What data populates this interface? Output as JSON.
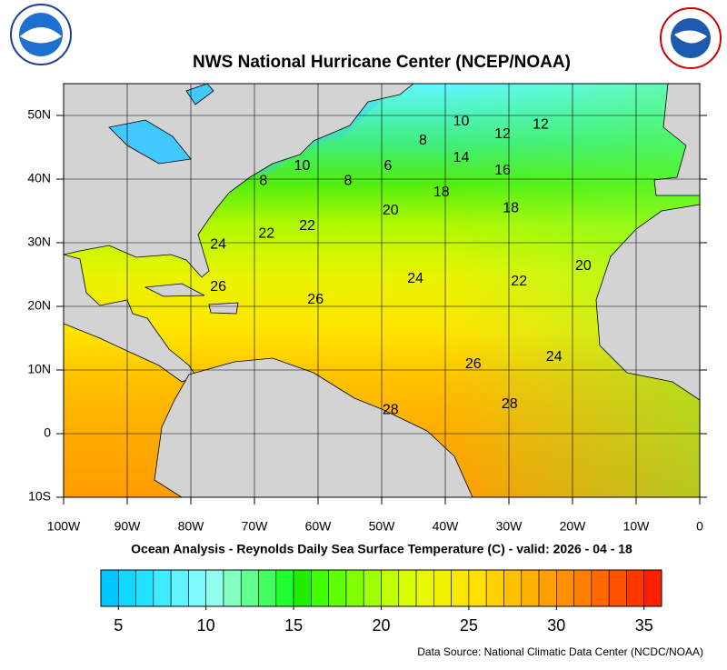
{
  "title": "NWS National Hurricane Center (NCEP/NOAA)",
  "subtitle": "Ocean Analysis - Reynolds Daily Sea Surface Temperature (C) - valid: 2026 - 04 - 18",
  "source": "Data Source: National Climatic Data Center (NCDC/NOAA)",
  "map": {
    "xlim": [
      -100,
      0
    ],
    "ylim": [
      -10,
      55
    ],
    "xticks": [
      {
        "value": -100,
        "label": "100W"
      },
      {
        "value": -90,
        "label": "90W"
      },
      {
        "value": -80,
        "label": "80W"
      },
      {
        "value": -70,
        "label": "70W"
      },
      {
        "value": -60,
        "label": "60W"
      },
      {
        "value": -50,
        "label": "50W"
      },
      {
        "value": -40,
        "label": "40W"
      },
      {
        "value": -30,
        "label": "30W"
      },
      {
        "value": -20,
        "label": "20W"
      },
      {
        "value": -10,
        "label": "10W"
      },
      0
    ],
    "yticks": [
      {
        "value": -10,
        "label": "10S"
      },
      0,
      {
        "value": 10,
        "label": "10N"
      },
      {
        "value": 20,
        "label": "20N"
      },
      {
        "value": 30,
        "label": "30N"
      },
      {
        "value": 40,
        "label": "40N"
      },
      {
        "value": 50,
        "label": "50N"
      }
    ],
    "grid": true,
    "contour_labels": [
      {
        "value": 10,
        "lon": -37.5,
        "lat": 49
      },
      {
        "value": 12,
        "lon": -25,
        "lat": 48.5
      },
      {
        "value": 8,
        "lon": -43.5,
        "lat": 46
      },
      {
        "value": 12,
        "lon": -31,
        "lat": 47
      },
      {
        "value": 14,
        "lon": -37.5,
        "lat": 43.3
      },
      {
        "value": 10,
        "lon": -62.5,
        "lat": 42
      },
      {
        "value": 6,
        "lon": -49,
        "lat": 42
      },
      {
        "value": 16,
        "lon": -31,
        "lat": 41.3
      },
      {
        "value": 8,
        "lon": -68.6,
        "lat": 39.7
      },
      {
        "value": 8,
        "lon": -55.3,
        "lat": 39.7
      },
      {
        "value": 18,
        "lon": -40.6,
        "lat": 37.9
      },
      {
        "value": 20,
        "lon": -48.6,
        "lat": 35
      },
      {
        "value": 18,
        "lon": -29.7,
        "lat": 35.4
      },
      {
        "value": 22,
        "lon": -68.1,
        "lat": 31.4
      },
      {
        "value": 22,
        "lon": -61.7,
        "lat": 32.6
      },
      {
        "value": 24,
        "lon": -75.7,
        "lat": 29.7
      },
      {
        "value": 20,
        "lon": -18.3,
        "lat": 26.3
      },
      {
        "value": 24,
        "lon": -44.7,
        "lat": 24.3
      },
      {
        "value": 22,
        "lon": -28.4,
        "lat": 23.9
      },
      {
        "value": 26,
        "lon": -75.7,
        "lat": 23
      },
      {
        "value": 26,
        "lon": -60.4,
        "lat": 21
      },
      {
        "value": 26,
        "lon": -35.6,
        "lat": 10.9
      },
      {
        "value": 24,
        "lon": -22.9,
        "lat": 12
      },
      {
        "value": 28,
        "lon": -48.6,
        "lat": 3.7
      },
      {
        "value": 28,
        "lon": -29.9,
        "lat": 4.6
      }
    ]
  },
  "colorbar": {
    "range": [
      4,
      36
    ],
    "ticks": [
      5,
      10,
      15,
      20,
      25,
      30,
      35
    ],
    "colors": [
      "#00c8ff",
      "#10d8ff",
      "#20e4ff",
      "#40ecff",
      "#60f4ff",
      "#80f8ff",
      "#90ffee",
      "#80ffc0",
      "#60ff90",
      "#40ff60",
      "#20ff30",
      "#20ee00",
      "#40ff00",
      "#60ff00",
      "#80ff00",
      "#a0ff00",
      "#c0ff00",
      "#d8ff00",
      "#e8f800",
      "#f0f000",
      "#f8e800",
      "#ffe000",
      "#ffd000",
      "#ffc000",
      "#ffb000",
      "#ffa000",
      "#ff9000",
      "#ff8000",
      "#ff6800",
      "#ff5000",
      "#ff3800",
      "#ff2000"
    ]
  }
}
